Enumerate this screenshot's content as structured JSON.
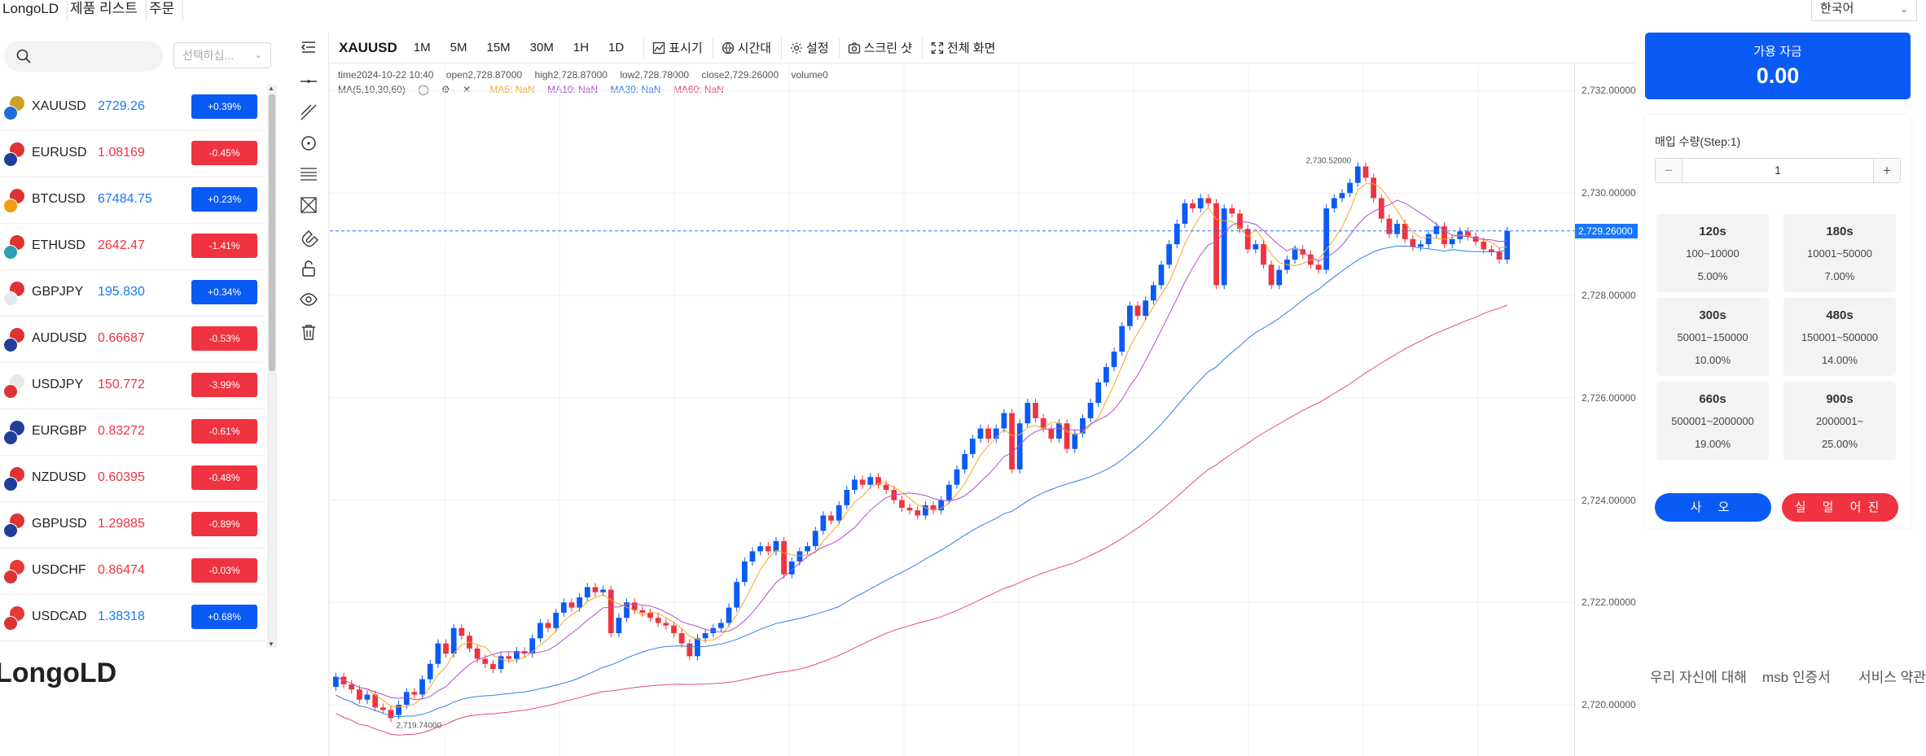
{
  "nav": {
    "items": [
      "LongoLD",
      "제품 리스트",
      "주문"
    ],
    "language": "한국어"
  },
  "search": {
    "placeholder": "",
    "filter_placeholder": "선택하십..."
  },
  "symbols": [
    {
      "name": "XAUUSD",
      "price": "2729.26",
      "change": "+0.39%",
      "dir": "up",
      "flag1": "#c9a227",
      "flag2": "#1e6fd9"
    },
    {
      "name": "EURUSD",
      "price": "1.08169",
      "change": "-0.45%",
      "dir": "down",
      "flag1": "#d33",
      "flag2": "#1f3f9a"
    },
    {
      "name": "BTCUSD",
      "price": "67484.75",
      "change": "+0.23%",
      "dir": "up",
      "flag1": "#d33",
      "flag2": "#f39c12"
    },
    {
      "name": "ETHUSD",
      "price": "2642.47",
      "change": "-1.41%",
      "dir": "down",
      "flag1": "#d33",
      "flag2": "#2c9fb0"
    },
    {
      "name": "GBPJPY",
      "price": "195.830",
      "change": "+0.34%",
      "dir": "up",
      "flag1": "#d33",
      "flag2": "#e8e8e8"
    },
    {
      "name": "AUDUSD",
      "price": "0.66687",
      "change": "-0.53%",
      "dir": "down",
      "flag1": "#d33",
      "flag2": "#1f3f9a"
    },
    {
      "name": "USDJPY",
      "price": "150.772",
      "change": "-3.99%",
      "dir": "down",
      "flag1": "#e8e8e8",
      "flag2": "#d33"
    },
    {
      "name": "EURGBP",
      "price": "0.83272",
      "change": "-0.61%",
      "dir": "down",
      "flag1": "#1f3f9a",
      "flag2": "#1f3f9a"
    },
    {
      "name": "NZDUSD",
      "price": "0.60395",
      "change": "-0.48%",
      "dir": "down",
      "flag1": "#d33",
      "flag2": "#1f3f9a"
    },
    {
      "name": "GBPUSD",
      "price": "1.29885",
      "change": "-0.89%",
      "dir": "down",
      "flag1": "#d33",
      "flag2": "#1f3f9a"
    },
    {
      "name": "USDCHF",
      "price": "0.86474",
      "change": "-0.03%",
      "dir": "down",
      "flag1": "#e53935",
      "flag2": "#d33"
    },
    {
      "name": "USDCAD",
      "price": "1.38318",
      "change": "+0.68%",
      "dir": "up",
      "flag1": "#e53935",
      "flag2": "#d33"
    }
  ],
  "colors": {
    "up": "#0a5af5",
    "down": "#ef3340",
    "up_text": "#1677ff",
    "down_text": "#ef3340",
    "ma5": "#f5a623",
    "ma10": "#b04fd1",
    "ma30": "#2f80ed",
    "ma60": "#e84a7f"
  },
  "toolbar": {
    "symbol": "XAUUSD",
    "timeframes": [
      "1M",
      "5M",
      "15M",
      "30M",
      "1H",
      "1D"
    ],
    "indicators": "표시기",
    "timezone": "시간대",
    "settings": "설정",
    "screenshot": "스크린 샷",
    "fullscreen": "전체 화면"
  },
  "legend": {
    "time": "time2024-10-22 10:40",
    "open": "open2,728.87000",
    "high": "high2,728.87000",
    "low": "low2,728.78000",
    "close": "close2,729.26000",
    "volume": "volume0",
    "ma_label": "MA(5,10,30,60)",
    "ma5": "MA5: NaN",
    "ma10": "MA10: NaN",
    "ma30": "MA30: NaN",
    "ma60": "MA60: NaN"
  },
  "price_axis": {
    "ticks": [
      "2,732.00000",
      "2,730.00000",
      "2,728.00000",
      "2,726.00000",
      "2,724.00000",
      "2,722.00000",
      "2,720.00000"
    ],
    "last_price": "2,729.26000",
    "high_label": "2,730.52000",
    "low_label": "2,719.74000"
  },
  "chart_data": {
    "type": "candlestick",
    "symbol": "XAUUSD",
    "ylim": [
      2719.0,
      2732.5
    ],
    "last_price": 2729.26,
    "high": 2730.52,
    "low": 2719.74,
    "candles": [
      [
        2720.35,
        2720.55
      ],
      [
        2720.55,
        2720.4
      ],
      [
        2720.4,
        2720.3
      ],
      [
        2720.3,
        2720.1
      ],
      [
        2720.1,
        2720.2
      ],
      [
        2720.2,
        2719.95
      ],
      [
        2719.95,
        2719.9
      ],
      [
        2719.9,
        2719.74
      ],
      [
        2719.8,
        2720.0
      ],
      [
        2720.0,
        2720.25
      ],
      [
        2720.25,
        2720.2
      ],
      [
        2720.2,
        2720.5
      ],
      [
        2720.5,
        2720.8
      ],
      [
        2720.8,
        2721.2
      ],
      [
        2721.2,
        2721.0
      ],
      [
        2721.0,
        2721.5
      ],
      [
        2721.5,
        2721.35
      ],
      [
        2721.35,
        2721.1
      ],
      [
        2721.1,
        2720.9
      ],
      [
        2720.9,
        2720.8
      ],
      [
        2720.8,
        2720.7
      ],
      [
        2720.7,
        2720.95
      ],
      [
        2720.95,
        2720.9
      ],
      [
        2720.9,
        2721.05
      ],
      [
        2721.05,
        2721.0
      ],
      [
        2721.0,
        2721.3
      ],
      [
        2721.3,
        2721.6
      ],
      [
        2721.6,
        2721.5
      ],
      [
        2721.5,
        2721.8
      ],
      [
        2721.8,
        2722.0
      ],
      [
        2722.0,
        2721.9
      ],
      [
        2721.9,
        2722.1
      ],
      [
        2722.1,
        2722.3
      ],
      [
        2722.3,
        2722.2
      ],
      [
        2722.2,
        2722.25
      ],
      [
        2722.25,
        2721.4
      ],
      [
        2721.4,
        2721.7
      ],
      [
        2721.7,
        2722.0
      ],
      [
        2722.0,
        2721.85
      ],
      [
        2721.85,
        2721.8
      ],
      [
        2721.8,
        2721.7
      ],
      [
        2721.7,
        2721.6
      ],
      [
        2721.6,
        2721.55
      ],
      [
        2721.55,
        2721.4
      ],
      [
        2721.4,
        2721.2
      ],
      [
        2721.2,
        2720.95
      ],
      [
        2720.95,
        2721.3
      ],
      [
        2721.3,
        2721.4
      ],
      [
        2721.4,
        2721.5
      ],
      [
        2721.5,
        2721.6
      ],
      [
        2721.6,
        2721.9
      ],
      [
        2721.9,
        2722.4
      ],
      [
        2722.4,
        2722.8
      ],
      [
        2722.8,
        2723.0
      ],
      [
        2723.0,
        2723.1
      ],
      [
        2723.1,
        2723.0
      ],
      [
        2723.0,
        2723.2
      ],
      [
        2723.2,
        2722.55
      ],
      [
        2722.55,
        2722.8
      ],
      [
        2722.8,
        2723.0
      ],
      [
        2723.0,
        2723.1
      ],
      [
        2723.1,
        2723.4
      ],
      [
        2723.4,
        2723.7
      ],
      [
        2723.7,
        2723.6
      ],
      [
        2723.6,
        2723.9
      ],
      [
        2723.9,
        2724.2
      ],
      [
        2724.2,
        2724.4
      ],
      [
        2724.4,
        2724.3
      ],
      [
        2724.3,
        2724.45
      ],
      [
        2724.45,
        2724.3
      ],
      [
        2724.3,
        2724.2
      ],
      [
        2724.2,
        2724.0
      ],
      [
        2724.0,
        2723.85
      ],
      [
        2723.85,
        2723.8
      ],
      [
        2723.8,
        2723.7
      ],
      [
        2723.7,
        2723.9
      ],
      [
        2723.9,
        2723.8
      ],
      [
        2723.8,
        2724.0
      ],
      [
        2724.0,
        2724.3
      ],
      [
        2724.3,
        2724.6
      ],
      [
        2724.6,
        2724.9
      ],
      [
        2724.9,
        2725.2
      ],
      [
        2725.2,
        2725.4
      ],
      [
        2725.4,
        2725.2
      ],
      [
        2725.2,
        2725.4
      ],
      [
        2725.4,
        2725.7
      ],
      [
        2725.7,
        2724.6
      ],
      [
        2724.6,
        2725.5
      ],
      [
        2725.5,
        2725.9
      ],
      [
        2725.9,
        2725.6
      ],
      [
        2725.6,
        2725.4
      ],
      [
        2725.4,
        2725.2
      ],
      [
        2725.2,
        2725.5
      ],
      [
        2725.5,
        2725.0
      ],
      [
        2725.0,
        2725.3
      ],
      [
        2725.3,
        2725.6
      ],
      [
        2725.6,
        2725.9
      ],
      [
        2725.9,
        2726.3
      ],
      [
        2726.3,
        2726.6
      ],
      [
        2726.6,
        2726.9
      ],
      [
        2726.9,
        2727.4
      ],
      [
        2727.4,
        2727.8
      ],
      [
        2727.8,
        2727.6
      ],
      [
        2727.6,
        2727.9
      ],
      [
        2727.9,
        2728.2
      ],
      [
        2728.2,
        2728.6
      ],
      [
        2728.6,
        2729.0
      ],
      [
        2729.0,
        2729.4
      ],
      [
        2729.4,
        2729.8
      ],
      [
        2729.8,
        2729.7
      ],
      [
        2729.7,
        2729.9
      ],
      [
        2729.9,
        2729.8
      ],
      [
        2729.8,
        2728.2
      ],
      [
        2728.2,
        2729.7
      ],
      [
        2729.7,
        2729.6
      ],
      [
        2729.6,
        2729.3
      ],
      [
        2729.3,
        2728.9
      ],
      [
        2728.9,
        2729.0
      ],
      [
        2729.0,
        2728.6
      ],
      [
        2728.6,
        2728.2
      ],
      [
        2728.2,
        2728.5
      ],
      [
        2728.5,
        2728.7
      ],
      [
        2728.7,
        2728.9
      ],
      [
        2728.9,
        2728.8
      ],
      [
        2728.8,
        2728.6
      ],
      [
        2728.6,
        2728.5
      ],
      [
        2728.5,
        2729.7
      ],
      [
        2729.7,
        2729.9
      ],
      [
        2729.9,
        2730.0
      ],
      [
        2730.0,
        2730.2
      ],
      [
        2730.2,
        2730.52
      ],
      [
        2730.52,
        2730.3
      ],
      [
        2730.3,
        2729.9
      ],
      [
        2729.9,
        2729.5
      ],
      [
        2729.5,
        2729.2
      ],
      [
        2729.2,
        2729.4
      ],
      [
        2729.4,
        2729.1
      ],
      [
        2729.1,
        2728.95
      ],
      [
        2728.95,
        2729.0
      ],
      [
        2729.0,
        2729.2
      ],
      [
        2729.2,
        2729.35
      ],
      [
        2729.35,
        2729.0
      ],
      [
        2729.0,
        2729.1
      ],
      [
        2729.1,
        2729.25
      ],
      [
        2729.25,
        2729.15
      ],
      [
        2729.15,
        2729.05
      ],
      [
        2729.05,
        2728.9
      ],
      [
        2728.9,
        2728.85
      ],
      [
        2728.85,
        2728.7
      ],
      [
        2728.7,
        2729.26
      ]
    ]
  },
  "trade": {
    "funds_label": "가용 자금",
    "funds_value": "0.00",
    "qty_label": "매입 수량(Step:1)",
    "qty_value": "1",
    "minus": "−",
    "plus": "+",
    "durations": [
      {
        "time": "120s",
        "range": "100~10000",
        "pct": "5.00%"
      },
      {
        "time": "180s",
        "range": "10001~50000",
        "pct": "7.00%"
      },
      {
        "time": "300s",
        "range": "50001~150000",
        "pct": "10.00%"
      },
      {
        "time": "480s",
        "range": "150001~500000",
        "pct": "14.00%"
      },
      {
        "time": "660s",
        "range": "500001~2000000",
        "pct": "19.00%"
      },
      {
        "time": "900s",
        "range": "2000001~",
        "pct": "25.00%"
      }
    ],
    "buy_label": "사 오",
    "sell_label": "실 멀 어진"
  },
  "footer": {
    "logo": "LongoLD",
    "links": [
      "우리 자신에 대해",
      "msb 인증서",
      "서비스 약관"
    ]
  }
}
